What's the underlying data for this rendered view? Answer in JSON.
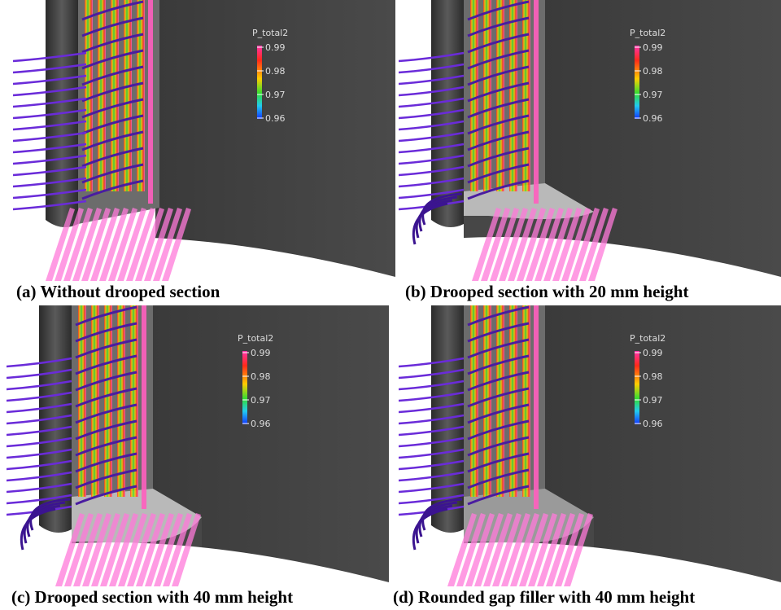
{
  "colorbar": {
    "title": "P_total2",
    "ticks": [
      "0.99",
      "0.98",
      "0.97",
      "0.96"
    ],
    "colors": [
      "#ff33aa",
      "#ff2a1a",
      "#ffcc00",
      "#33dd33",
      "#22ccee",
      "#1133ff"
    ]
  },
  "panels": [
    {
      "id": "a",
      "caption": "(a) Without drooped section",
      "droop": "none"
    },
    {
      "id": "b",
      "caption": "(b) Drooped section with 20 mm height",
      "droop": "20mm"
    },
    {
      "id": "c",
      "caption": "(c) Drooped section with 40 mm height",
      "droop": "40mm"
    },
    {
      "id": "d",
      "caption": "(d) Rounded gap filler with 40 mm height",
      "droop": "40mm-rounded"
    }
  ]
}
